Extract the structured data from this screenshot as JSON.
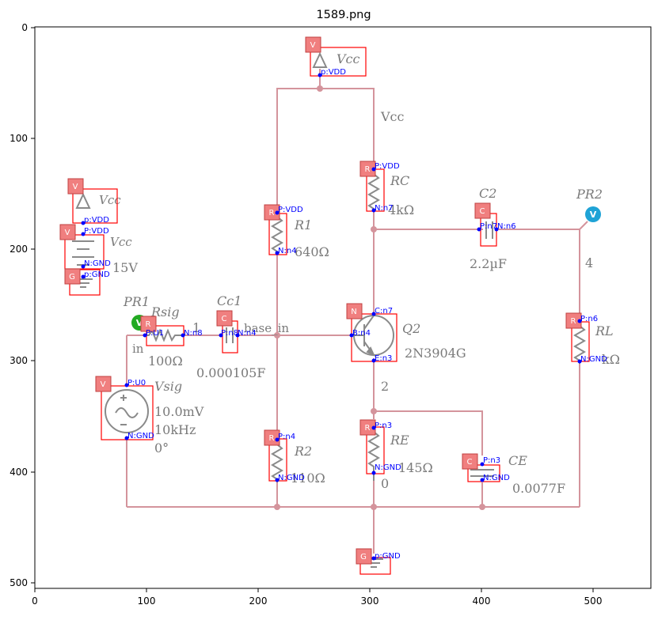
{
  "figure": {
    "title": "1589.png",
    "x_ticks": [
      "0",
      "100",
      "200",
      "300",
      "400",
      "500"
    ],
    "y_ticks": [
      "0",
      "100",
      "200",
      "300",
      "400",
      "500"
    ]
  },
  "schematic": {
    "vcc_top": "Vcc",
    "vcc_net": "Vcc",
    "vcc_left_a": "Vcc",
    "vcc_left_b": "Vcc",
    "vcc_value": "15V",
    "rc_name": "RC",
    "rc_value": "4kΩ",
    "r1_name": "R1",
    "r1_value": "640Ω",
    "c2_name": "C2",
    "c2_value": "2.2µF",
    "pr2_name": "PR2",
    "net4": "4",
    "pr1_name": "PR1",
    "rsig_name": "Rsig",
    "rsig_value": "100Ω",
    "net1": "1",
    "cc1_name": "Cc1",
    "cc1_value": "0.000105F",
    "base_label": "base_in",
    "in_label": "in",
    "q2_name": "Q2",
    "q2_model": "2N3904G",
    "rl_name": "RL",
    "rl_value": "kΩ",
    "vsig_name": "Vsig",
    "vsig_amp": "10.0mV",
    "vsig_freq": "10kHz",
    "vsig_phase": "0°",
    "net2": "2",
    "r2_name": "R2",
    "r2_value": "110Ω",
    "re_name": "RE",
    "re_value": "145Ω",
    "net0": "0",
    "ce_name": "CE",
    "ce_value": "0.0077F",
    "probe_letter": "V"
  },
  "annotations": {
    "tags": {
      "v": "V",
      "r": "R",
      "c": "C",
      "n": "N",
      "g": "G"
    },
    "pins": {
      "vdd_top": "p:VDD",
      "left_vcc_top": "p:VDD",
      "left_vcc_p": "P:VDD",
      "left_vcc_n": "N:GND",
      "left_gnd": "p:GND",
      "rc_p": "P:VDD",
      "rc_n": "N:n7",
      "r1_p": "P:VDD",
      "r1_n": "N:n4",
      "c2_p": "P:n7",
      "c2_n": "N:n6",
      "rsig_p": "P:U1",
      "rsig_n": "N:n8",
      "cc1_p": "P:n8",
      "cc1_n": "N:n4",
      "q_c": "C:n7",
      "q_b": "B:n4",
      "q_e": "E:n3",
      "rl_p": "P:n6",
      "rl_n": "N:GND",
      "vsig_p": "P:U0",
      "vsig_n": "N:GND",
      "r2_p": "P:n4",
      "r2_n": "N:GND",
      "re_p": "P:n3",
      "re_n": "N:GND",
      "ce_p": "P:n3",
      "ce_n": "N:GND",
      "gnd_bottom": "p:GND"
    }
  },
  "colors": {
    "wire": "#d4949c",
    "component": "#8a8a8a",
    "box": "#ff0000",
    "tag_fill": "#f07f7f",
    "pin": "#0000ff",
    "probe_pr1": "#22aa22",
    "probe_pr2": "#1fa3d6"
  }
}
